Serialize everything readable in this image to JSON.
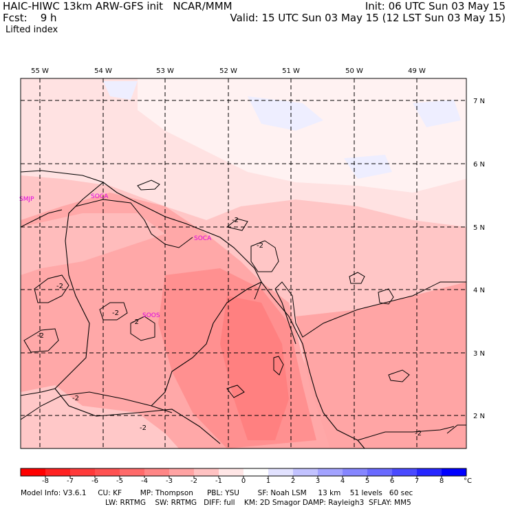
{
  "header": {
    "line1_left": "HAIC-HIWC 13km ARW-GFS init   NCAR/MMM",
    "line1_right": "Init: 06 UTC Sun 03 May 15",
    "line2_left": "Fcst:    9 h",
    "line2_right": "Valid: 15 UTC Sun 03 May 15 (12 LST Sun 03 May 15)",
    "field_name": "Lifted index"
  },
  "map": {
    "lon_labels": [
      "55 W",
      "54 W",
      "53 W",
      "52 W",
      "51 W",
      "50 W",
      "49 W"
    ],
    "lat_labels": [
      "7 N",
      "6 N",
      "5 N",
      "4 N",
      "3 N",
      "2 N"
    ],
    "stations": [
      "SMJP",
      "SOCA",
      "SOCA",
      "SOOS"
    ],
    "contour_labels": [
      "-2",
      "-2",
      "-2",
      "-2",
      "-2",
      "-2",
      "-2",
      "-2",
      "-2",
      "-2"
    ]
  },
  "colorbar": {
    "ticks": [
      "-8",
      "-7",
      "-6",
      "-5",
      "-4",
      "-3",
      "-2",
      "-1",
      "0",
      "1",
      "2",
      "3",
      "4",
      "5",
      "6",
      "7",
      "8"
    ],
    "unit": "°C",
    "colors": [
      "#ff0000",
      "#ff2222",
      "#ff3b3b",
      "#ff5252",
      "#ff6a6a",
      "#ff8686",
      "#ffa3a3",
      "#ffc2c2",
      "#ffe6e6",
      "#ffffff",
      "#e2e2ff",
      "#c2c2ff",
      "#a3a3ff",
      "#8686ff",
      "#6a6aff",
      "#4a4aff",
      "#2626ff",
      "#0000ff"
    ]
  },
  "footer": {
    "line1": "Model Info: V3.6.1     CU: KF        MP: Thompson      PBL: YSU        SF: Noah LSM     13 km    51 levels   60 sec",
    "line2": "LW: RRTMG    SW: RRTMG   DIFF: full    KM: 2D Smagor DAMP: Rayleigh3  SFLAY: MM5"
  }
}
